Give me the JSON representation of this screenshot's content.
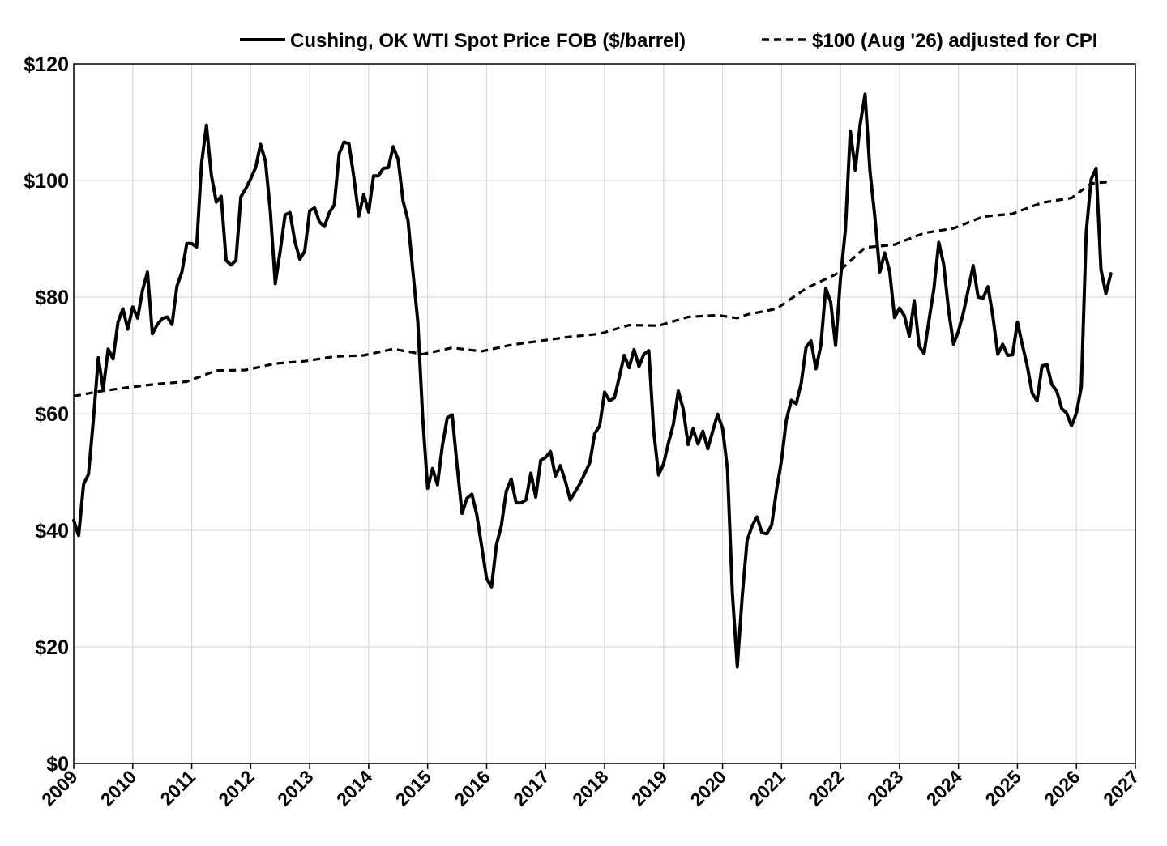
{
  "chart_data": {
    "type": "line",
    "title": "",
    "xlabel": "",
    "ylabel": "",
    "xlim": [
      "2009-01",
      "2027-01"
    ],
    "ylim": [
      0,
      120
    ],
    "y_tick_labels": [
      "$0",
      "$20",
      "$40",
      "$60",
      "$80",
      "$100",
      "$120"
    ],
    "y_tick_values": [
      0,
      20,
      40,
      60,
      80,
      100,
      120
    ],
    "x_tick_labels": [
      "2009",
      "2010",
      "2011",
      "2012",
      "2013",
      "2014",
      "2015",
      "2016",
      "2017",
      "2018",
      "2019",
      "2020",
      "2021",
      "2022",
      "2023",
      "2024",
      "2025",
      "2026",
      "2027"
    ],
    "x_tick_values": [
      "2009-01",
      "2010-01",
      "2011-01",
      "2012-01",
      "2013-01",
      "2014-01",
      "2015-01",
      "2016-01",
      "2017-01",
      "2018-01",
      "2019-01",
      "2020-01",
      "2021-01",
      "2022-01",
      "2023-01",
      "2024-01",
      "2025-01",
      "2026-01",
      "2027-01"
    ],
    "grid": true,
    "legend_position": "top",
    "series": [
      {
        "name": "Cushing, OK WTI Spot Price FOB ($/barrel)",
        "style": "solid",
        "color": "#000000",
        "x": [
          "2009-01",
          "2009-02",
          "2009-03",
          "2009-04",
          "2009-05",
          "2009-06",
          "2009-07",
          "2009-08",
          "2009-09",
          "2009-10",
          "2009-11",
          "2009-12",
          "2010-01",
          "2010-02",
          "2010-03",
          "2010-04",
          "2010-05",
          "2010-06",
          "2010-07",
          "2010-08",
          "2010-09",
          "2010-10",
          "2010-11",
          "2010-12",
          "2011-01",
          "2011-02",
          "2011-03",
          "2011-04",
          "2011-05",
          "2011-06",
          "2011-07",
          "2011-08",
          "2011-09",
          "2011-10",
          "2011-11",
          "2011-12",
          "2012-01",
          "2012-02",
          "2012-03",
          "2012-04",
          "2012-05",
          "2012-06",
          "2012-07",
          "2012-08",
          "2012-09",
          "2012-10",
          "2012-11",
          "2012-12",
          "2013-01",
          "2013-02",
          "2013-03",
          "2013-04",
          "2013-05",
          "2013-06",
          "2013-07",
          "2013-08",
          "2013-09",
          "2013-10",
          "2013-11",
          "2013-12",
          "2014-01",
          "2014-02",
          "2014-03",
          "2014-04",
          "2014-05",
          "2014-06",
          "2014-07",
          "2014-08",
          "2014-09",
          "2014-10",
          "2014-11",
          "2014-12",
          "2015-01",
          "2015-02",
          "2015-03",
          "2015-04",
          "2015-05",
          "2015-06",
          "2015-07",
          "2015-08",
          "2015-09",
          "2015-10",
          "2015-11",
          "2015-12",
          "2016-01",
          "2016-02",
          "2016-03",
          "2016-04",
          "2016-05",
          "2016-06",
          "2016-07",
          "2016-08",
          "2016-09",
          "2016-10",
          "2016-11",
          "2016-12",
          "2017-01",
          "2017-02",
          "2017-03",
          "2017-04",
          "2017-05",
          "2017-06",
          "2017-07",
          "2017-08",
          "2017-09",
          "2017-10",
          "2017-11",
          "2017-12",
          "2018-01",
          "2018-02",
          "2018-03",
          "2018-04",
          "2018-05",
          "2018-06",
          "2018-07",
          "2018-08",
          "2018-09",
          "2018-10",
          "2018-11",
          "2018-12",
          "2019-01",
          "2019-02",
          "2019-03",
          "2019-04",
          "2019-05",
          "2019-06",
          "2019-07",
          "2019-08",
          "2019-09",
          "2019-10",
          "2019-11",
          "2019-12",
          "2020-01",
          "2020-02",
          "2020-03",
          "2020-04",
          "2020-05",
          "2020-06",
          "2020-07",
          "2020-08",
          "2020-09",
          "2020-10",
          "2020-11",
          "2020-12",
          "2021-01",
          "2021-02",
          "2021-03",
          "2021-04",
          "2021-05",
          "2021-06",
          "2021-07",
          "2021-08",
          "2021-09",
          "2021-10",
          "2021-11",
          "2021-12",
          "2022-01",
          "2022-02",
          "2022-03",
          "2022-04",
          "2022-05",
          "2022-06",
          "2022-07",
          "2022-08",
          "2022-09",
          "2022-10",
          "2022-11",
          "2022-12",
          "2023-01",
          "2023-02",
          "2023-03",
          "2023-04",
          "2023-05",
          "2023-06",
          "2023-07",
          "2023-08",
          "2023-09",
          "2023-10",
          "2023-11",
          "2023-12",
          "2024-01",
          "2024-02",
          "2024-03",
          "2024-04",
          "2024-05",
          "2024-06",
          "2024-07",
          "2024-08",
          "2024-09",
          "2024-10",
          "2024-11",
          "2024-12",
          "2025-01",
          "2025-02",
          "2025-03",
          "2025-04",
          "2025-05",
          "2025-06",
          "2025-07",
          "2025-08",
          "2025-09",
          "2025-10",
          "2025-11",
          "2025-12",
          "2026-01",
          "2026-02",
          "2026-03",
          "2026-04",
          "2026-05",
          "2026-06",
          "2026-07",
          "2026-08"
        ],
        "y": [
          41.7,
          39.1,
          47.9,
          49.6,
          59.0,
          69.6,
          64.2,
          71.1,
          69.4,
          75.7,
          78.0,
          74.5,
          78.3,
          76.4,
          81.2,
          84.3,
          73.7,
          75.3,
          76.3,
          76.6,
          75.3,
          81.9,
          84.3,
          89.2,
          89.2,
          88.6,
          102.9,
          109.5,
          100.9,
          96.3,
          97.3,
          86.3,
          85.5,
          86.3,
          97.2,
          98.6,
          100.3,
          102.2,
          106.2,
          103.3,
          94.7,
          82.3,
          87.9,
          94.1,
          94.5,
          89.5,
          86.5,
          87.9,
          94.8,
          95.3,
          92.9,
          92.1,
          94.5,
          95.8,
          104.6,
          106.6,
          106.3,
          100.5,
          93.9,
          97.6,
          94.6,
          100.8,
          100.8,
          102.1,
          102.2,
          105.8,
          103.6,
          96.5,
          93.2,
          84.4,
          75.8,
          59.3,
          47.2,
          50.6,
          47.8,
          54.5,
          59.3,
          59.8,
          51.0,
          42.9,
          45.5,
          46.2,
          42.7,
          37.2,
          31.7,
          30.3,
          37.5,
          40.8,
          46.7,
          48.8,
          44.7,
          44.7,
          45.2,
          49.8,
          45.7,
          52.0,
          52.5,
          53.5,
          49.3,
          51.1,
          48.5,
          45.2,
          46.6,
          48.0,
          49.8,
          51.6,
          56.6,
          57.9,
          63.7,
          62.2,
          62.7,
          66.3,
          70.0,
          67.9,
          71.0,
          68.1,
          70.2,
          70.8,
          56.9,
          49.5,
          51.4,
          55.0,
          58.2,
          63.9,
          60.8,
          54.7,
          57.4,
          54.8,
          57.0,
          54.0,
          57.0,
          59.9,
          57.5,
          50.5,
          29.2,
          16.6,
          28.6,
          38.3,
          40.7,
          42.3,
          39.6,
          39.4,
          40.9,
          47.0,
          52.0,
          59.0,
          62.3,
          61.7,
          65.2,
          71.4,
          72.5,
          67.7,
          71.7,
          81.5,
          79.2,
          71.7,
          83.2,
          91.6,
          108.5,
          101.8,
          109.6,
          114.8,
          101.6,
          93.7,
          84.3,
          87.6,
          84.4,
          76.5,
          78.1,
          76.8,
          73.3,
          79.4,
          71.6,
          70.3,
          76.0,
          81.4,
          89.4,
          85.6,
          77.7,
          71.9,
          74.2,
          77.3,
          81.3,
          85.4,
          80.0,
          79.8,
          81.8,
          76.7,
          70.2,
          71.9,
          70.0,
          70.1,
          75.7,
          71.8,
          68.2,
          63.5,
          62.2,
          68.2,
          68.4,
          65.0,
          63.9,
          60.9,
          60.1,
          57.9,
          60.1,
          64.6,
          91.2,
          100.2,
          102.1,
          84.7,
          80.6,
          84.0
        ]
      },
      {
        "name": "$100 (Aug '26) adjusted for CPI",
        "style": "dashed",
        "color": "#000000",
        "x": [
          "2009-01",
          "2009-06",
          "2009-12",
          "2010-06",
          "2010-12",
          "2011-06",
          "2011-12",
          "2012-06",
          "2012-12",
          "2013-06",
          "2013-12",
          "2014-06",
          "2014-12",
          "2015-06",
          "2015-12",
          "2016-06",
          "2016-12",
          "2017-06",
          "2017-12",
          "2018-06",
          "2018-12",
          "2019-06",
          "2019-12",
          "2020-04",
          "2020-06",
          "2020-12",
          "2021-06",
          "2021-12",
          "2022-06",
          "2022-12",
          "2023-06",
          "2023-12",
          "2024-06",
          "2024-12",
          "2025-06",
          "2025-12",
          "2026-04",
          "2026-08"
        ],
        "y": [
          63.0,
          63.8,
          64.5,
          65.1,
          65.5,
          67.4,
          67.5,
          68.6,
          69.0,
          69.8,
          70.0,
          71.1,
          70.2,
          71.3,
          70.7,
          71.8,
          72.5,
          73.2,
          73.7,
          75.2,
          75.1,
          76.6,
          76.9,
          76.4,
          77.0,
          78.0,
          81.5,
          83.9,
          88.5,
          89.0,
          91.0,
          91.8,
          93.8,
          94.3,
          96.2,
          97.0,
          99.5,
          99.8
        ]
      }
    ]
  }
}
